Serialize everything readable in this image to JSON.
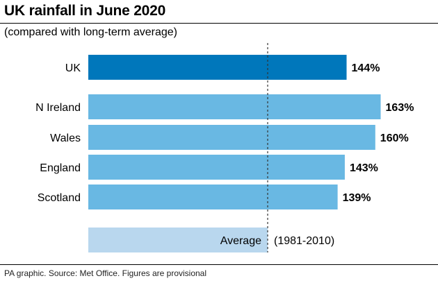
{
  "header": {
    "title": "UK rainfall in June 2020",
    "subtitle": "(compared with long-term average)"
  },
  "footer": {
    "source": "PA graphic. Source: Met Office. Figures are provisional"
  },
  "colors": {
    "uk_bar": "#0077bb",
    "nation_bar": "#69b8e3",
    "average_bar": "#b9d7ee",
    "average_line": "#333333"
  },
  "chart_data": {
    "type": "bar",
    "orientation": "horizontal",
    "title": "UK rainfall in June 2020",
    "subtitle": "(compared with long-term average)",
    "unit": "%",
    "categories": [
      "UK",
      "N Ireland",
      "Wales",
      "England",
      "Scotland",
      "Average"
    ],
    "values": [
      144,
      163,
      160,
      143,
      139,
      100
    ],
    "value_labels": [
      "144%",
      "163%",
      "160%",
      "143%",
      "139%",
      ""
    ],
    "average_label": "(1981-2010)",
    "reference_line": 100,
    "grid": false,
    "legend": "none"
  }
}
